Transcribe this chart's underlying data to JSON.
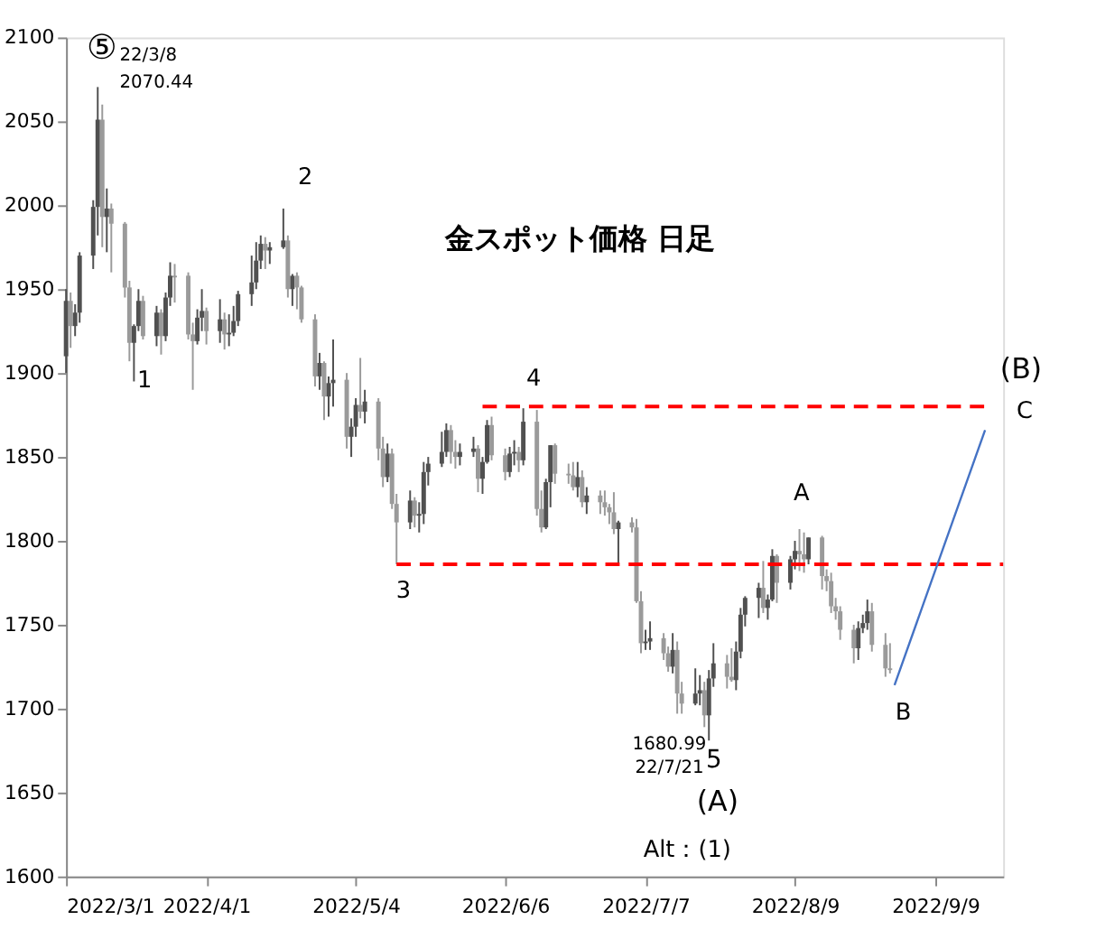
{
  "chart_data": {
    "type": "candlestick",
    "title": "金スポット価格 日足",
    "x": [
      "2022-03-01",
      "2022-03-02",
      "2022-03-03",
      "2022-03-04",
      "2022-03-07",
      "2022-03-08",
      "2022-03-09",
      "2022-03-10",
      "2022-03-11",
      "2022-03-14",
      "2022-03-15",
      "2022-03-16",
      "2022-03-17",
      "2022-03-18",
      "2022-03-21",
      "2022-03-22",
      "2022-03-23",
      "2022-03-24",
      "2022-03-25",
      "2022-03-28",
      "2022-03-29",
      "2022-03-30",
      "2022-03-31",
      "2022-04-01",
      "2022-04-04",
      "2022-04-05",
      "2022-04-06",
      "2022-04-07",
      "2022-04-08",
      "2022-04-11",
      "2022-04-12",
      "2022-04-13",
      "2022-04-14",
      "2022-04-15",
      "2022-04-18",
      "2022-04-19",
      "2022-04-20",
      "2022-04-21",
      "2022-04-22",
      "2022-04-25",
      "2022-04-26",
      "2022-04-27",
      "2022-04-28",
      "2022-04-29",
      "2022-05-02",
      "2022-05-03",
      "2022-05-04",
      "2022-05-05",
      "2022-05-06",
      "2022-05-09",
      "2022-05-10",
      "2022-05-11",
      "2022-05-12",
      "2022-05-13",
      "2022-05-16",
      "2022-05-17",
      "2022-05-18",
      "2022-05-19",
      "2022-05-20",
      "2022-05-23",
      "2022-05-24",
      "2022-05-25",
      "2022-05-26",
      "2022-05-27",
      "2022-05-30",
      "2022-05-31",
      "2022-06-01",
      "2022-06-02",
      "2022-06-03",
      "2022-06-06",
      "2022-06-07",
      "2022-06-08",
      "2022-06-09",
      "2022-06-10",
      "2022-06-13",
      "2022-06-14",
      "2022-06-15",
      "2022-06-16",
      "2022-06-17",
      "2022-06-20",
      "2022-06-21",
      "2022-06-22",
      "2022-06-23",
      "2022-06-24",
      "2022-06-27",
      "2022-06-28",
      "2022-06-29",
      "2022-06-30",
      "2022-07-01",
      "2022-07-04",
      "2022-07-05",
      "2022-07-06",
      "2022-07-07",
      "2022-07-08",
      "2022-07-11",
      "2022-07-12",
      "2022-07-13",
      "2022-07-14",
      "2022-07-15",
      "2022-07-18",
      "2022-07-19",
      "2022-07-20",
      "2022-07-21",
      "2022-07-22",
      "2022-07-25",
      "2022-07-26",
      "2022-07-27",
      "2022-07-28",
      "2022-07-29",
      "2022-08-01",
      "2022-08-02",
      "2022-08-03",
      "2022-08-04",
      "2022-08-05",
      "2022-08-08",
      "2022-08-09",
      "2022-08-10",
      "2022-08-11",
      "2022-08-12",
      "2022-08-15",
      "2022-08-16",
      "2022-08-17",
      "2022-08-18",
      "2022-08-19",
      "2022-08-22",
      "2022-08-23",
      "2022-08-24",
      "2022-08-25",
      "2022-08-26",
      "2022-08-29",
      "2022-08-30"
    ],
    "ohlc": [
      [
        1910,
        1950,
        1900,
        1943
      ],
      [
        1943,
        1948,
        1915,
        1928
      ],
      [
        1928,
        1941,
        1922,
        1936
      ],
      [
        1936,
        1972,
        1930,
        1970
      ],
      [
        1970,
        2003,
        1962,
        1999
      ],
      [
        1999,
        2070.44,
        1982,
        2051
      ],
      [
        2051,
        2060,
        1975,
        1993
      ],
      [
        1993,
        2010,
        1972,
        1998
      ],
      [
        1998,
        2001,
        1960,
        1989
      ],
      [
        1989,
        1990,
        1945,
        1951
      ],
      [
        1951,
        1955,
        1907,
        1918
      ],
      [
        1918,
        1929,
        1895,
        1928
      ],
      [
        1928,
        1950,
        1925,
        1943
      ],
      [
        1943,
        1946,
        1920,
        1922
      ],
      [
        1922,
        1940,
        1916,
        1936
      ],
      [
        1936,
        1938,
        1911,
        1922
      ],
      [
        1922,
        1948,
        1919,
        1945
      ],
      [
        1945,
        1966,
        1940,
        1958
      ],
      [
        1958,
        1965,
        1942,
        1957
      ],
      [
        1958,
        1960,
        1920,
        1923
      ],
      [
        1923,
        1930,
        1890,
        1919
      ],
      [
        1919,
        1938,
        1917,
        1933
      ],
      [
        1933,
        1950,
        1925,
        1937
      ],
      [
        1937,
        1939,
        1917,
        1925
      ],
      [
        1925,
        1944,
        1918,
        1932
      ],
      [
        1932,
        1936,
        1914,
        1923
      ],
      [
        1923,
        1935,
        1916,
        1924
      ],
      [
        1924,
        1940,
        1922,
        1931
      ],
      [
        1931,
        1949,
        1928,
        1947
      ],
      [
        1947,
        1970,
        1940,
        1954
      ],
      [
        1954,
        1978,
        1950,
        1967
      ],
      [
        1967,
        1982,
        1962,
        1977
      ],
      [
        1977,
        1981,
        1962,
        1973
      ],
      [
        1973,
        1978,
        1965,
        1975
      ],
      [
        1975,
        1998,
        1974,
        1979
      ],
      [
        1979,
        1982,
        1945,
        1950
      ],
      [
        1950,
        1959,
        1940,
        1958
      ],
      [
        1958,
        1960,
        1938,
        1951
      ],
      [
        1951,
        1952,
        1930,
        1932
      ],
      [
        1932,
        1935,
        1892,
        1898
      ],
      [
        1898,
        1912,
        1890,
        1906
      ],
      [
        1906,
        1907,
        1872,
        1886
      ],
      [
        1886,
        1898,
        1874,
        1894
      ],
      [
        1894,
        1920,
        1880,
        1896
      ],
      [
        1896,
        1900,
        1855,
        1862
      ],
      [
        1862,
        1873,
        1850,
        1868
      ],
      [
        1868,
        1885,
        1862,
        1881
      ],
      [
        1881,
        1909,
        1873,
        1877
      ],
      [
        1877,
        1890,
        1870,
        1883
      ],
      [
        1883,
        1885,
        1848,
        1855
      ],
      [
        1855,
        1862,
        1832,
        1838
      ],
      [
        1838,
        1858,
        1835,
        1852
      ],
      [
        1852,
        1855,
        1819,
        1822
      ],
      [
        1822,
        1828,
        1786,
        1811
      ],
      [
        1811,
        1830,
        1807,
        1824
      ],
      [
        1824,
        1826,
        1808,
        1815
      ],
      [
        1815,
        1823,
        1805,
        1816
      ],
      [
        1816,
        1847,
        1810,
        1841
      ],
      [
        1841,
        1850,
        1833,
        1846
      ],
      [
        1846,
        1865,
        1844,
        1853
      ],
      [
        1853,
        1870,
        1850,
        1866
      ],
      [
        1866,
        1869,
        1846,
        1853
      ],
      [
        1853,
        1860,
        1843,
        1850
      ],
      [
        1850,
        1858,
        1845,
        1853
      ],
      [
        1853,
        1862,
        1850,
        1855
      ],
      [
        1855,
        1857,
        1829,
        1837
      ],
      [
        1837,
        1850,
        1828,
        1847
      ],
      [
        1847,
        1872,
        1846,
        1869
      ],
      [
        1869,
        1874,
        1848,
        1851
      ],
      [
        1851,
        1855,
        1836,
        1841
      ],
      [
        1841,
        1856,
        1838,
        1852
      ],
      [
        1852,
        1860,
        1845,
        1853
      ],
      [
        1853,
        1856,
        1841,
        1848
      ],
      [
        1848,
        1879,
        1845,
        1871
      ],
      [
        1871,
        1878,
        1815,
        1819
      ],
      [
        1819,
        1830,
        1805,
        1808
      ],
      [
        1808,
        1837,
        1807,
        1835
      ],
      [
        1835,
        1857,
        1820,
        1857
      ],
      [
        1857,
        1858,
        1834,
        1840
      ],
      [
        1840,
        1846,
        1834,
        1839
      ],
      [
        1839,
        1847,
        1830,
        1832
      ],
      [
        1832,
        1847,
        1826,
        1838
      ],
      [
        1838,
        1842,
        1820,
        1823
      ],
      [
        1823,
        1832,
        1816,
        1827
      ],
      [
        1827,
        1830,
        1816,
        1823
      ],
      [
        1823,
        1830,
        1815,
        1820
      ],
      [
        1820,
        1822,
        1810,
        1817
      ],
      [
        1817,
        1829,
        1804,
        1807
      ],
      [
        1807,
        1812,
        1786,
        1811
      ],
      [
        1811,
        1814,
        1805,
        1808
      ],
      [
        1808,
        1813,
        1763,
        1764
      ],
      [
        1764,
        1770,
        1733,
        1739
      ],
      [
        1739,
        1747,
        1735,
        1740
      ],
      [
        1740,
        1752,
        1735,
        1742
      ],
      [
        1742,
        1745,
        1729,
        1733
      ],
      [
        1733,
        1737,
        1722,
        1725
      ],
      [
        1725,
        1745,
        1721,
        1735
      ],
      [
        1735,
        1740,
        1697,
        1709
      ],
      [
        1709,
        1716,
        1697,
        1703
      ],
      [
        1703,
        1724,
        1702,
        1709
      ],
      [
        1709,
        1720,
        1702,
        1711
      ],
      [
        1711,
        1716,
        1689,
        1696
      ],
      [
        1696,
        1723,
        1680.99,
        1718
      ],
      [
        1718,
        1739,
        1713,
        1727
      ],
      [
        1727,
        1732,
        1712,
        1719
      ],
      [
        1719,
        1736,
        1716,
        1717
      ],
      [
        1717,
        1740,
        1711,
        1734
      ],
      [
        1734,
        1760,
        1730,
        1756
      ],
      [
        1756,
        1767,
        1749,
        1766
      ],
      [
        1766,
        1775,
        1754,
        1772
      ],
      [
        1772,
        1788,
        1757,
        1760
      ],
      [
        1760,
        1768,
        1753,
        1765
      ],
      [
        1765,
        1795,
        1764,
        1791
      ],
      [
        1791,
        1792,
        1763,
        1775
      ],
      [
        1775,
        1791,
        1771,
        1789
      ],
      [
        1789,
        1800,
        1783,
        1794
      ],
      [
        1794,
        1807,
        1782,
        1792
      ],
      [
        1792,
        1805,
        1781,
        1789
      ],
      [
        1789,
        1802,
        1786,
        1802
      ],
      [
        1802,
        1803,
        1771,
        1779
      ],
      [
        1779,
        1783,
        1770,
        1776
      ],
      [
        1776,
        1781,
        1757,
        1761
      ],
      [
        1761,
        1766,
        1753,
        1758
      ],
      [
        1758,
        1761,
        1741,
        1747
      ],
      [
        1747,
        1750,
        1727,
        1736
      ],
      [
        1736,
        1752,
        1729,
        1748
      ],
      [
        1748,
        1756,
        1745,
        1751
      ],
      [
        1751,
        1765,
        1747,
        1758
      ],
      [
        1758,
        1763,
        1734,
        1738
      ],
      [
        1738,
        1745,
        1719,
        1724
      ],
      [
        1724,
        1739,
        1721,
        1723
      ]
    ],
    "series": [
      {
        "type": "line",
        "x": [
          "2022-06-01",
          "2022-09-20"
        ],
        "values": [
          1880,
          1880
        ],
        "color": "#ff0000",
        "line_style": "dashed"
      },
      {
        "type": "line",
        "x": [
          "2022-05-13",
          "2022-09-24"
        ],
        "values": [
          1786,
          1786
        ],
        "color": "#ff0000",
        "line_style": "dashed"
      },
      {
        "type": "line",
        "x": [
          "2022-08-31",
          "2022-09-20"
        ],
        "values": [
          1714,
          1866
        ],
        "color": "#4472c4",
        "line_style": "solid"
      }
    ],
    "xlim": [
      "2022-03-01",
      "2022-09-24"
    ],
    "xticks": [
      {
        "value": "2022-03-01",
        "label": "2022/3/1"
      },
      {
        "value": "2022-04-01",
        "label": "2022/4/1"
      },
      {
        "value": "2022-05-04",
        "label": "2022/5/4"
      },
      {
        "value": "2022-06-06",
        "label": "2022/6/6"
      },
      {
        "value": "2022-07-07",
        "label": "2022/7/7"
      },
      {
        "value": "2022-08-09",
        "label": "2022/8/9"
      },
      {
        "value": "2022-09-09",
        "label": "2022/9/9"
      }
    ],
    "ylim": [
      1600,
      2100
    ],
    "yticks": [
      1600,
      1650,
      1700,
      1750,
      1800,
      1850,
      1900,
      1950,
      2000,
      2050,
      2100
    ],
    "grid": false,
    "annotations": [
      "⑤",
      "22/3/8",
      "2070.44",
      "1",
      "2",
      "3",
      "4",
      "1680.99",
      "22/7/21",
      "5",
      "(A)",
      "Alt：(1)",
      "A",
      "B",
      "(B)",
      "C"
    ]
  }
}
